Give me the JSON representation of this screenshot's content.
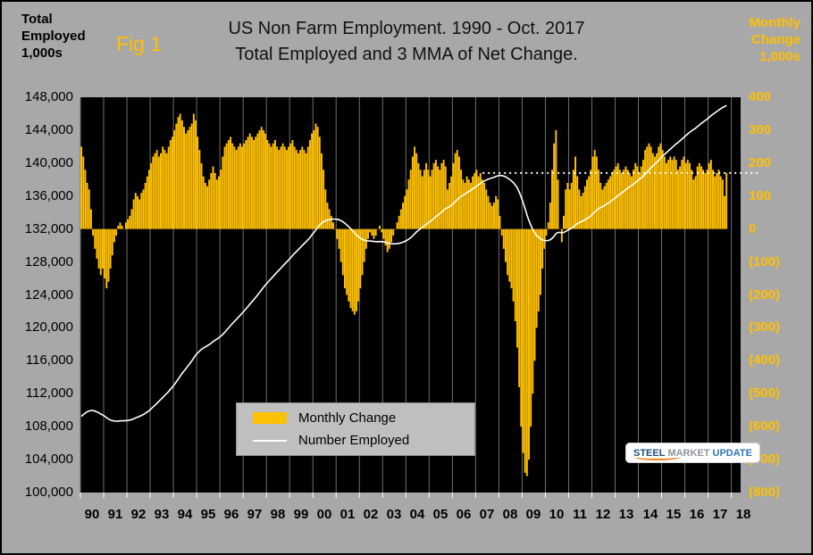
{
  "header": {
    "figure_label": "Fig 1",
    "title_line1": "US Non Farm Employment. 1990 - Oct. 2017",
    "title_line2": "Total Employed and 3 MMA of  Net Change.",
    "left_axis_title": [
      "Total",
      "Employed",
      "1,000s"
    ],
    "right_axis_title": [
      "Monthly",
      "Change",
      "1,000s"
    ]
  },
  "legend": {
    "monthly_change": "Monthly Change",
    "number_employed": "Number Employed"
  },
  "logo": {
    "word1": "STEEL",
    "word2": "MARKET",
    "word3": "UPDATE"
  },
  "colors": {
    "bar": "#FFC000",
    "line": "#FFFFFF",
    "plot_bg": "#000000",
    "page_bg": "#A8A8A8",
    "gridline": "#6E6E6E",
    "left_axis_text": "#000000",
    "right_axis_text": "#FFC000",
    "legend_bg": "#BFBFBF"
  },
  "chart_data": {
    "type": "bar+line",
    "title": "US Non Farm Employment. 1990 - Oct. 2017 — Total Employed and 3 MMA of  Net Change.",
    "x_domain": [
      1990,
      2018.4
    ],
    "x_tick_labels": [
      "90",
      "91",
      "92",
      "93",
      "94",
      "95",
      "96",
      "97",
      "98",
      "99",
      "00",
      "01",
      "02",
      "03",
      "04",
      "05",
      "06",
      "07",
      "08",
      "09",
      "10",
      "11",
      "12",
      "13",
      "14",
      "15",
      "16",
      "17",
      "18"
    ],
    "left_axis": {
      "label": "Total Employed 1,000s",
      "min": 100000,
      "max": 148000,
      "step": 4000,
      "tick_labels": [
        "148,000",
        "144,000",
        "140,000",
        "136,000",
        "132,000",
        "128,000",
        "124,000",
        "120,000",
        "116,000",
        "112,000",
        "108,000",
        "104,000",
        "100,000"
      ]
    },
    "right_axis": {
      "label": "Monthly Change 1,000s",
      "min": -800,
      "max": 400,
      "step": 100,
      "tick_labels": [
        "400",
        "300",
        "200",
        "100",
        "0",
        "(100)",
        "(200)",
        "(300)",
        "(400)",
        "(500)",
        "(600)",
        "(700)",
        "(800)"
      ]
    },
    "right_to_left_scale": 40,
    "start_year": 1990,
    "months": 334,
    "employment_start": 109000,
    "reference_line": {
      "right_axis_value": 170,
      "x_start_year": 2007.3,
      "style": "dotted",
      "color": "#FFFFFF"
    },
    "series": [
      {
        "name": "Monthly Change",
        "type": "bar",
        "color": "#FFC000"
      },
      {
        "name": "Number Employed",
        "type": "line",
        "color": "#FFFFFF",
        "derived": "employment_start plus cumulative sum of Monthly Change"
      }
    ],
    "monthly_change_3mma": [
      250,
      220,
      180,
      140,
      120,
      60,
      -20,
      -60,
      -90,
      -120,
      -140,
      -120,
      -150,
      -180,
      -160,
      -120,
      -80,
      -40,
      -20,
      10,
      20,
      10,
      0,
      20,
      30,
      40,
      60,
      90,
      110,
      100,
      90,
      110,
      120,
      140,
      160,
      180,
      200,
      220,
      230,
      240,
      220,
      230,
      250,
      240,
      230,
      250,
      270,
      280,
      300,
      320,
      340,
      350,
      330,
      310,
      290,
      300,
      310,
      320,
      350,
      330,
      280,
      240,
      200,
      160,
      140,
      130,
      150,
      170,
      190,
      170,
      150,
      160,
      180,
      220,
      250,
      260,
      270,
      280,
      260,
      250,
      240,
      250,
      260,
      250,
      260,
      270,
      280,
      290,
      280,
      270,
      280,
      290,
      300,
      310,
      300,
      290,
      270,
      260,
      250,
      260,
      270,
      250,
      240,
      250,
      260,
      250,
      240,
      250,
      260,
      270,
      250,
      240,
      230,
      240,
      250,
      240,
      230,
      250,
      270,
      290,
      300,
      320,
      310,
      280,
      230,
      180,
      120,
      80,
      60,
      40,
      20,
      0,
      -30,
      -60,
      -100,
      -140,
      -180,
      -200,
      -220,
      -240,
      -250,
      -260,
      -250,
      -220,
      -180,
      -140,
      -100,
      -60,
      -30,
      -10,
      -20,
      -30,
      -20,
      0,
      10,
      -10,
      -30,
      -50,
      -70,
      -60,
      -40,
      -20,
      0,
      20,
      40,
      60,
      80,
      100,
      120,
      150,
      180,
      220,
      250,
      230,
      200,
      180,
      160,
      180,
      200,
      180,
      160,
      180,
      200,
      210,
      190,
      180,
      200,
      210,
      190,
      120,
      140,
      160,
      200,
      230,
      240,
      220,
      180,
      150,
      140,
      160,
      150,
      140,
      160,
      170,
      180,
      160,
      170,
      150,
      140,
      120,
      100,
      80,
      70,
      80,
      100,
      90,
      40,
      -20,
      -60,
      -100,
      -140,
      -160,
      -180,
      -220,
      -280,
      -360,
      -480,
      -600,
      -680,
      -740,
      -750,
      -700,
      -600,
      -500,
      -400,
      -300,
      -250,
      -200,
      -120,
      -60,
      -20,
      20,
      80,
      180,
      260,
      300,
      150,
      0,
      -40,
      40,
      120,
      140,
      120,
      140,
      180,
      220,
      160,
      120,
      100,
      110,
      130,
      150,
      160,
      180,
      220,
      240,
      220,
      180,
      140,
      120,
      130,
      140,
      150,
      160,
      170,
      180,
      190,
      200,
      180,
      170,
      180,
      190,
      180,
      170,
      160,
      180,
      200,
      190,
      170,
      190,
      210,
      240,
      250,
      260,
      250,
      230,
      220,
      230,
      250,
      260,
      240,
      220,
      200,
      210,
      220,
      210,
      220,
      210,
      180,
      190,
      210,
      220,
      200,
      210,
      200,
      180,
      150,
      160,
      190,
      200,
      190,
      180,
      170,
      180,
      200,
      210,
      180,
      160,
      170,
      180,
      160,
      150,
      100,
      170
    ]
  }
}
